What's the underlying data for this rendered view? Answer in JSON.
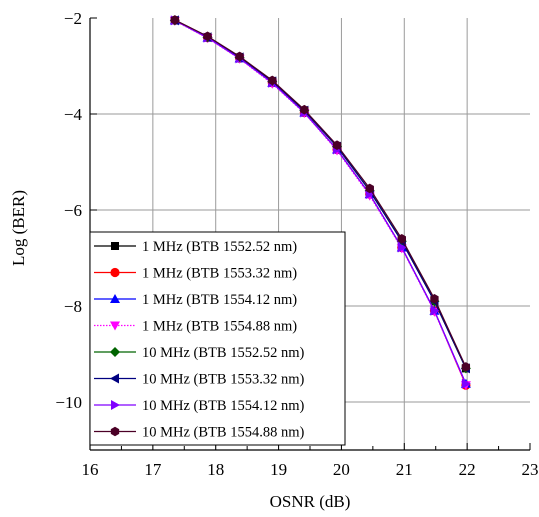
{
  "chart_data": {
    "type": "line",
    "title": "",
    "xlabel": "OSNR (dB)",
    "ylabel": "Log (BER)",
    "xlim": [
      16,
      23
    ],
    "ylim": [
      -11,
      -2
    ],
    "x_ticks": [
      "16",
      "17",
      "18",
      "19",
      "20",
      "21",
      "22",
      "23"
    ],
    "y_ticks": [
      "−2",
      "−4",
      "−6",
      "−8",
      "−10"
    ],
    "grid": true,
    "legend_position": "bottom-left",
    "x": [
      17.35,
      17.87,
      18.38,
      18.9,
      19.41,
      19.93,
      20.45,
      20.96,
      21.48,
      21.98
    ],
    "series": [
      {
        "name": "1 MHz (BTB 1552.52 nm)",
        "color": "#000000",
        "marker": "square",
        "line_style": "solid",
        "values": [
          -2.05,
          -2.4,
          -2.82,
          -3.32,
          -3.93,
          -4.68,
          -5.6,
          -6.65,
          -7.9,
          -9.3
        ]
      },
      {
        "name": "1 MHz (BTB 1553.32 nm)",
        "color": "#ff0000",
        "marker": "circle",
        "line_style": "solid",
        "values": [
          -2.05,
          -2.41,
          -2.84,
          -3.35,
          -3.97,
          -4.74,
          -5.67,
          -6.78,
          -8.1,
          -9.65
        ]
      },
      {
        "name": "1 MHz (BTB 1554.12 nm)",
        "color": "#0000ff",
        "marker": "triangle-up",
        "line_style": "solid",
        "values": [
          -2.05,
          -2.41,
          -2.84,
          -3.35,
          -3.97,
          -4.74,
          -5.67,
          -6.78,
          -8.1,
          -9.62
        ]
      },
      {
        "name": "1 MHz (BTB 1554.88 nm)",
        "color": "#ff00ff",
        "marker": "triangle-down",
        "line_style": "dotted",
        "values": [
          -2.06,
          -2.42,
          -2.85,
          -3.37,
          -3.98,
          -4.76,
          -5.7,
          -6.8,
          -8.12,
          -9.65
        ]
      },
      {
        "name": "10 MHz (BTB 1552.52 nm)",
        "color": "#006400",
        "marker": "diamond",
        "line_style": "solid",
        "values": [
          -2.05,
          -2.4,
          -2.82,
          -3.32,
          -3.93,
          -4.68,
          -5.6,
          -6.65,
          -7.9,
          -9.3
        ]
      },
      {
        "name": "10 MHz (BTB 1553.32 nm)",
        "color": "#000080",
        "marker": "triangle-left",
        "line_style": "solid",
        "values": [
          -2.05,
          -2.4,
          -2.82,
          -3.32,
          -3.93,
          -4.68,
          -5.6,
          -6.65,
          -7.9,
          -9.3
        ]
      },
      {
        "name": "10 MHz (BTB 1554.12 nm)",
        "color": "#8000ff",
        "marker": "triangle-right",
        "line_style": "solid",
        "values": [
          -2.05,
          -2.41,
          -2.84,
          -3.35,
          -3.97,
          -4.74,
          -5.67,
          -6.78,
          -8.1,
          -9.62
        ]
      },
      {
        "name": "10 MHz (BTB 1554.88 nm)",
        "color": "#4b0026",
        "marker": "hexagon",
        "line_style": "solid",
        "values": [
          -2.04,
          -2.38,
          -2.8,
          -3.3,
          -3.91,
          -4.65,
          -5.55,
          -6.6,
          -7.85,
          -9.27
        ]
      }
    ]
  }
}
